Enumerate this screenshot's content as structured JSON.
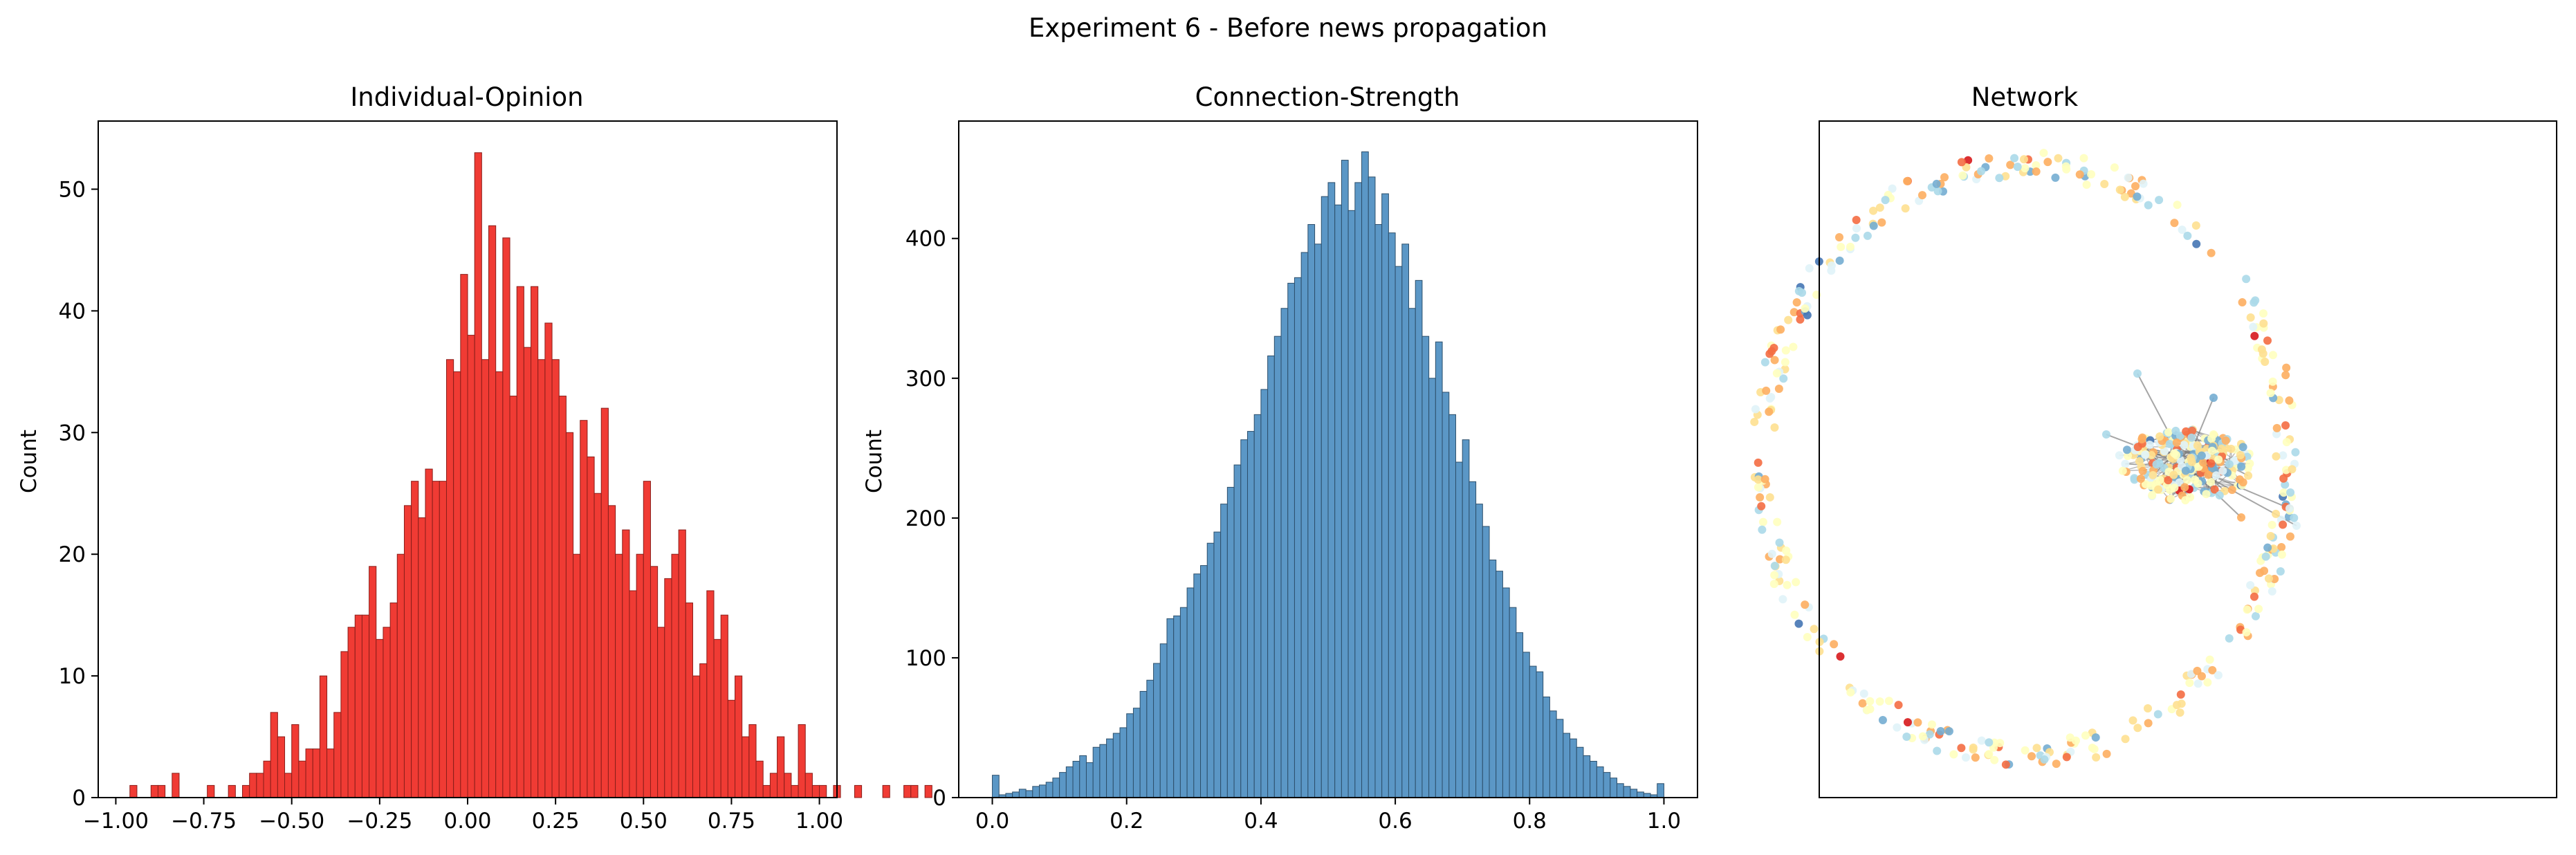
{
  "figure": {
    "title": "Experiment 6 - Before news propagation"
  },
  "colors": {
    "opinion_bar": "#f03b34",
    "opinion_edge": "#8a1e1a",
    "strength_bar": "#5b97c6",
    "strength_edge": "#2d4f6b",
    "axis": "#000000",
    "node_palette": [
      "#d7191c",
      "#f46d43",
      "#fdae61",
      "#fee090",
      "#ffffbf",
      "#e0f3f8",
      "#abd9e9",
      "#74add1",
      "#4575b4"
    ]
  },
  "chart_data": [
    {
      "type": "bar",
      "title": "Individual-Opinion",
      "xlabel": "",
      "ylabel": "Count",
      "xlim": [
        -1.05,
        1.05
      ],
      "ylim": [
        0,
        55.6
      ],
      "xticks": [
        -1.0,
        -0.75,
        -0.5,
        -0.25,
        0.0,
        0.25,
        0.5,
        0.75,
        1.0
      ],
      "xtick_labels": [
        "−1.00",
        "−0.75",
        "−0.50",
        "−0.25",
        "0.00",
        "0.25",
        "0.50",
        "0.75",
        "1.00"
      ],
      "yticks": [
        0,
        10,
        20,
        30,
        40,
        50
      ],
      "ytick_labels": [
        "0",
        "10",
        "20",
        "30",
        "40",
        "50"
      ],
      "bin_start": -1.0,
      "bin_width": 0.02,
      "values": [
        0,
        0,
        1,
        0,
        0,
        1,
        1,
        0,
        2,
        0,
        0,
        0,
        0,
        1,
        0,
        0,
        1,
        0,
        1,
        2,
        2,
        3,
        7,
        5,
        2,
        6,
        3,
        4,
        4,
        10,
        4,
        7,
        12,
        14,
        15,
        15,
        19,
        13,
        14,
        16,
        20,
        24,
        26,
        23,
        27,
        26,
        26,
        36,
        35,
        43,
        38,
        53,
        36,
        47,
        35,
        46,
        33,
        42,
        37,
        42,
        36,
        39,
        36,
        33,
        30,
        20,
        31,
        28,
        25,
        32,
        24,
        20,
        22,
        17,
        20,
        26,
        19,
        14,
        18,
        20,
        22,
        16,
        10,
        11,
        17,
        13,
        15,
        8,
        10,
        5,
        6,
        3,
        1,
        2,
        5,
        2,
        1,
        6,
        2,
        1,
        1,
        0,
        1,
        0,
        0,
        1,
        0,
        0,
        0,
        1,
        0,
        0,
        1,
        1,
        0,
        1
      ]
    },
    {
      "type": "bar",
      "title": "Connection-Strength",
      "xlabel": "",
      "ylabel": "Count",
      "xlim": [
        -0.05,
        1.05
      ],
      "ylim": [
        0,
        484
      ],
      "xticks": [
        0.0,
        0.2,
        0.4,
        0.6,
        0.8,
        1.0
      ],
      "xtick_labels": [
        "0.0",
        "0.2",
        "0.4",
        "0.6",
        "0.8",
        "1.0"
      ],
      "yticks": [
        0,
        100,
        200,
        300,
        400
      ],
      "ytick_labels": [
        "0",
        "100",
        "200",
        "300",
        "400"
      ],
      "bin_start": 0.0,
      "bin_width": 0.01,
      "values": [
        16,
        2,
        3,
        4,
        6,
        5,
        8,
        9,
        11,
        14,
        18,
        22,
        26,
        30,
        25,
        36,
        38,
        42,
        46,
        50,
        60,
        64,
        76,
        84,
        96,
        110,
        128,
        130,
        136,
        150,
        160,
        166,
        182,
        190,
        210,
        222,
        238,
        256,
        262,
        274,
        292,
        316,
        330,
        350,
        368,
        372,
        390,
        410,
        396,
        430,
        440,
        424,
        456,
        420,
        440,
        462,
        444,
        410,
        432,
        404,
        380,
        396,
        350,
        370,
        330,
        300,
        326,
        290,
        274,
        240,
        256,
        226,
        210,
        194,
        170,
        162,
        150,
        136,
        118,
        104,
        94,
        90,
        72,
        62,
        56,
        46,
        42,
        36,
        30,
        26,
        22,
        18,
        14,
        10,
        8,
        6,
        4,
        3,
        2,
        10
      ]
    }
  ],
  "network": {
    "title": "Network"
  }
}
